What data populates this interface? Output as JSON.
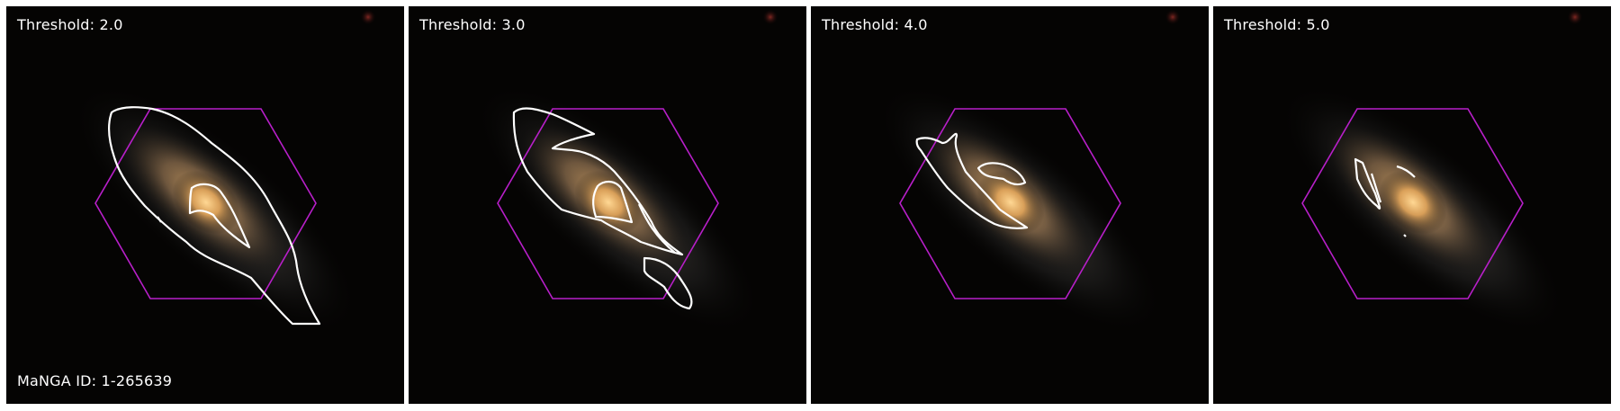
{
  "figure": {
    "panels": [
      {
        "threshold_label": "Threshold: 2.0"
      },
      {
        "threshold_label": "Threshold: 3.0"
      },
      {
        "threshold_label": "Threshold: 4.0"
      },
      {
        "threshold_label": "Threshold: 5.0"
      }
    ],
    "galaxy_id_label": "MaNGA ID: 1-265639"
  },
  "colors": {
    "ifu_hexagon": "#b81fc9",
    "contour": "#ffffff",
    "galaxy_core": "#f2b866",
    "galaxy_halo": "#8a6a4a",
    "sky_background": "#050403"
  }
}
